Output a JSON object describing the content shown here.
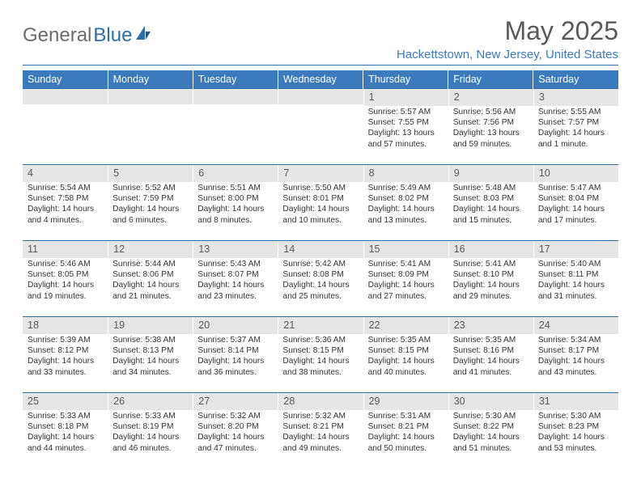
{
  "brand": {
    "name_plain": "General",
    "name_accent": "Blue"
  },
  "title": {
    "month": "May 2025",
    "location": "Hackettstown, New Jersey, United States"
  },
  "colors": {
    "header_bg": "#3b7bbd",
    "header_text": "#ffffff",
    "daynum_bg": "#e6e6e6",
    "daynum_text": "#595959",
    "rule": "#2f6fa8",
    "location_text": "#3b7bbd",
    "title_text": "#595959",
    "body_text": "#333333"
  },
  "weekdays": [
    "Sunday",
    "Monday",
    "Tuesday",
    "Wednesday",
    "Thursday",
    "Friday",
    "Saturday"
  ],
  "weeks": [
    [
      {
        "n": "",
        "lines": []
      },
      {
        "n": "",
        "lines": []
      },
      {
        "n": "",
        "lines": []
      },
      {
        "n": "",
        "lines": []
      },
      {
        "n": "1",
        "lines": [
          "Sunrise: 5:57 AM",
          "Sunset: 7:55 PM",
          "Daylight: 13 hours and 57 minutes."
        ]
      },
      {
        "n": "2",
        "lines": [
          "Sunrise: 5:56 AM",
          "Sunset: 7:56 PM",
          "Daylight: 13 hours and 59 minutes."
        ]
      },
      {
        "n": "3",
        "lines": [
          "Sunrise: 5:55 AM",
          "Sunset: 7:57 PM",
          "Daylight: 14 hours and 1 minute."
        ]
      }
    ],
    [
      {
        "n": "4",
        "lines": [
          "Sunrise: 5:54 AM",
          "Sunset: 7:58 PM",
          "Daylight: 14 hours and 4 minutes."
        ]
      },
      {
        "n": "5",
        "lines": [
          "Sunrise: 5:52 AM",
          "Sunset: 7:59 PM",
          "Daylight: 14 hours and 6 minutes."
        ]
      },
      {
        "n": "6",
        "lines": [
          "Sunrise: 5:51 AM",
          "Sunset: 8:00 PM",
          "Daylight: 14 hours and 8 minutes."
        ]
      },
      {
        "n": "7",
        "lines": [
          "Sunrise: 5:50 AM",
          "Sunset: 8:01 PM",
          "Daylight: 14 hours and 10 minutes."
        ]
      },
      {
        "n": "8",
        "lines": [
          "Sunrise: 5:49 AM",
          "Sunset: 8:02 PM",
          "Daylight: 14 hours and 13 minutes."
        ]
      },
      {
        "n": "9",
        "lines": [
          "Sunrise: 5:48 AM",
          "Sunset: 8:03 PM",
          "Daylight: 14 hours and 15 minutes."
        ]
      },
      {
        "n": "10",
        "lines": [
          "Sunrise: 5:47 AM",
          "Sunset: 8:04 PM",
          "Daylight: 14 hours and 17 minutes."
        ]
      }
    ],
    [
      {
        "n": "11",
        "lines": [
          "Sunrise: 5:46 AM",
          "Sunset: 8:05 PM",
          "Daylight: 14 hours and 19 minutes."
        ]
      },
      {
        "n": "12",
        "lines": [
          "Sunrise: 5:44 AM",
          "Sunset: 8:06 PM",
          "Daylight: 14 hours and 21 minutes."
        ]
      },
      {
        "n": "13",
        "lines": [
          "Sunrise: 5:43 AM",
          "Sunset: 8:07 PM",
          "Daylight: 14 hours and 23 minutes."
        ]
      },
      {
        "n": "14",
        "lines": [
          "Sunrise: 5:42 AM",
          "Sunset: 8:08 PM",
          "Daylight: 14 hours and 25 minutes."
        ]
      },
      {
        "n": "15",
        "lines": [
          "Sunrise: 5:41 AM",
          "Sunset: 8:09 PM",
          "Daylight: 14 hours and 27 minutes."
        ]
      },
      {
        "n": "16",
        "lines": [
          "Sunrise: 5:41 AM",
          "Sunset: 8:10 PM",
          "Daylight: 14 hours and 29 minutes."
        ]
      },
      {
        "n": "17",
        "lines": [
          "Sunrise: 5:40 AM",
          "Sunset: 8:11 PM",
          "Daylight: 14 hours and 31 minutes."
        ]
      }
    ],
    [
      {
        "n": "18",
        "lines": [
          "Sunrise: 5:39 AM",
          "Sunset: 8:12 PM",
          "Daylight: 14 hours and 33 minutes."
        ]
      },
      {
        "n": "19",
        "lines": [
          "Sunrise: 5:38 AM",
          "Sunset: 8:13 PM",
          "Daylight: 14 hours and 34 minutes."
        ]
      },
      {
        "n": "20",
        "lines": [
          "Sunrise: 5:37 AM",
          "Sunset: 8:14 PM",
          "Daylight: 14 hours and 36 minutes."
        ]
      },
      {
        "n": "21",
        "lines": [
          "Sunrise: 5:36 AM",
          "Sunset: 8:15 PM",
          "Daylight: 14 hours and 38 minutes."
        ]
      },
      {
        "n": "22",
        "lines": [
          "Sunrise: 5:35 AM",
          "Sunset: 8:15 PM",
          "Daylight: 14 hours and 40 minutes."
        ]
      },
      {
        "n": "23",
        "lines": [
          "Sunrise: 5:35 AM",
          "Sunset: 8:16 PM",
          "Daylight: 14 hours and 41 minutes."
        ]
      },
      {
        "n": "24",
        "lines": [
          "Sunrise: 5:34 AM",
          "Sunset: 8:17 PM",
          "Daylight: 14 hours and 43 minutes."
        ]
      }
    ],
    [
      {
        "n": "25",
        "lines": [
          "Sunrise: 5:33 AM",
          "Sunset: 8:18 PM",
          "Daylight: 14 hours and 44 minutes."
        ]
      },
      {
        "n": "26",
        "lines": [
          "Sunrise: 5:33 AM",
          "Sunset: 8:19 PM",
          "Daylight: 14 hours and 46 minutes."
        ]
      },
      {
        "n": "27",
        "lines": [
          "Sunrise: 5:32 AM",
          "Sunset: 8:20 PM",
          "Daylight: 14 hours and 47 minutes."
        ]
      },
      {
        "n": "28",
        "lines": [
          "Sunrise: 5:32 AM",
          "Sunset: 8:21 PM",
          "Daylight: 14 hours and 49 minutes."
        ]
      },
      {
        "n": "29",
        "lines": [
          "Sunrise: 5:31 AM",
          "Sunset: 8:21 PM",
          "Daylight: 14 hours and 50 minutes."
        ]
      },
      {
        "n": "30",
        "lines": [
          "Sunrise: 5:30 AM",
          "Sunset: 8:22 PM",
          "Daylight: 14 hours and 51 minutes."
        ]
      },
      {
        "n": "31",
        "lines": [
          "Sunrise: 5:30 AM",
          "Sunset: 8:23 PM",
          "Daylight: 14 hours and 53 minutes."
        ]
      }
    ]
  ]
}
